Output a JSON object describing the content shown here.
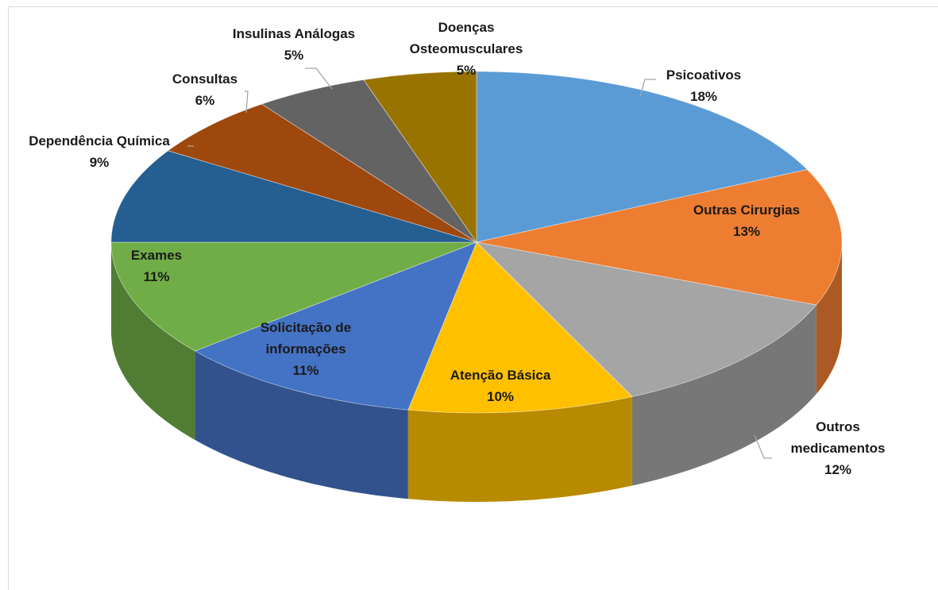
{
  "chart_data": {
    "type": "pie",
    "categories": [
      "Psicoativos",
      "Outras Cirurgias",
      "Outros medicamentos",
      "Atenção Básica",
      "Solicitação de informações",
      "Exames",
      "Dependência Química",
      "Consultas",
      "Insulinas Análogas",
      "Doenças Osteomusculares"
    ],
    "values": [
      18,
      13,
      12,
      10,
      11,
      11,
      9,
      6,
      5,
      5
    ],
    "value_labels": [
      "18%",
      "13%",
      "12%",
      "10%",
      "11%",
      "11%",
      "9%",
      "6%",
      "5%",
      "5%"
    ],
    "colors": [
      "#5b9bd5",
      "#ed7d31",
      "#a5a5a5",
      "#ffc000",
      "#4472c4",
      "#70ad47",
      "#255e91",
      "#9e480e",
      "#636363",
      "#997300"
    ]
  }
}
